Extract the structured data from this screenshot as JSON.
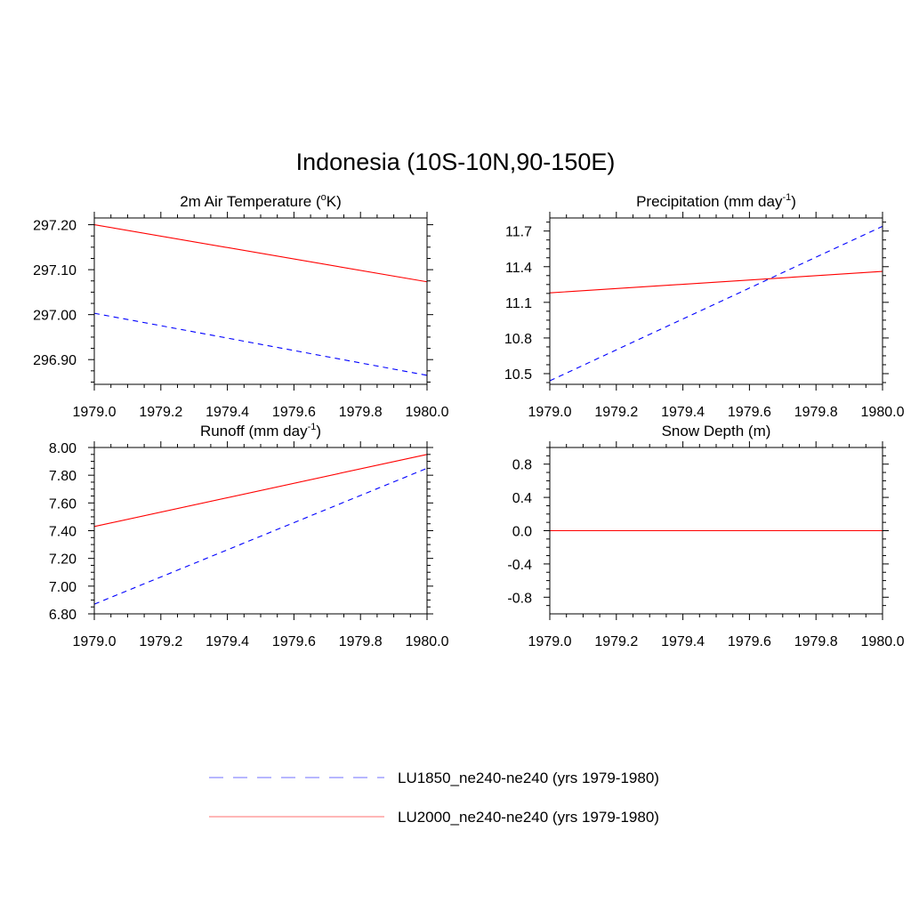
{
  "page": {
    "title": "Indonesia (10S-10N,90-150E)"
  },
  "legend": {
    "items": [
      {
        "label": "LU1850_ne240-ne240 (yrs 1979-1980)",
        "color": "#0000ff",
        "dash": "dashed"
      },
      {
        "label": "LU2000_ne240-ne240 (yrs 1979-1980)",
        "color": "#ff0000",
        "dash": "solid"
      }
    ]
  },
  "chart_data": [
    {
      "type": "line",
      "title": "2m Air Temperature (°K)",
      "title_parts": {
        "pre": "2m Air Temperature (",
        "sup": "o",
        "post": "K)"
      },
      "xlim": [
        1979.0,
        1980.0
      ],
      "x_ticks": [
        "1979.0",
        "1979.2",
        "1979.4",
        "1979.6",
        "1979.8",
        "1980.0"
      ],
      "ylim": [
        296.845,
        297.215
      ],
      "y_ticks": [
        296.9,
        297.0,
        297.1,
        297.2
      ],
      "y_tick_labels": [
        "296.90",
        "297.00",
        "297.10",
        "297.20"
      ],
      "series": [
        {
          "name": "LU1850_ne240-ne240 (yrs 1979-1980)",
          "x": [
            1979.0,
            1980.0
          ],
          "y": [
            297.003,
            296.865
          ]
        },
        {
          "name": "LU2000_ne240-ne240 (yrs 1979-1980)",
          "x": [
            1979.0,
            1980.0
          ],
          "y": [
            297.2,
            297.073
          ]
        }
      ]
    },
    {
      "type": "line",
      "title": "Precipitation (mm day-1)",
      "title_parts": {
        "pre": "Precipitation (mm day",
        "sup": "-1",
        "post": ")"
      },
      "xlim": [
        1979.0,
        1980.0
      ],
      "x_ticks": [
        "1979.0",
        "1979.2",
        "1979.4",
        "1979.6",
        "1979.8",
        "1980.0"
      ],
      "ylim": [
        10.41,
        11.81
      ],
      "y_ticks": [
        10.5,
        10.8,
        11.1,
        11.4,
        11.7
      ],
      "y_tick_labels": [
        "10.5",
        "10.8",
        "11.1",
        "11.4",
        "11.7"
      ],
      "series": [
        {
          "name": "LU1850_ne240-ne240 (yrs 1979-1980)",
          "x": [
            1979.0,
            1980.0
          ],
          "y": [
            10.44,
            11.74
          ]
        },
        {
          "name": "LU2000_ne240-ne240 (yrs 1979-1980)",
          "x": [
            1979.0,
            1980.0
          ],
          "y": [
            11.18,
            11.36
          ]
        }
      ]
    },
    {
      "type": "line",
      "title": "Runoff (mm day-1)",
      "title_parts": {
        "pre": "Runoff (mm day",
        "sup": "-1",
        "post": ")"
      },
      "xlim": [
        1979.0,
        1980.0
      ],
      "x_ticks": [
        "1979.0",
        "1979.2",
        "1979.4",
        "1979.6",
        "1979.8",
        "1980.0"
      ],
      "ylim": [
        6.8,
        8.0
      ],
      "y_ticks": [
        6.8,
        7.0,
        7.2,
        7.4,
        7.6,
        7.8,
        8.0
      ],
      "y_tick_labels": [
        "6.80",
        "7.00",
        "7.20",
        "7.40",
        "7.60",
        "7.80",
        "8.00"
      ],
      "series": [
        {
          "name": "LU1850_ne240-ne240 (yrs 1979-1980)",
          "x": [
            1979.0,
            1980.0
          ],
          "y": [
            6.87,
            7.85
          ]
        },
        {
          "name": "LU2000_ne240-ne240 (yrs 1979-1980)",
          "x": [
            1979.0,
            1980.0
          ],
          "y": [
            7.43,
            7.95
          ]
        }
      ]
    },
    {
      "type": "line",
      "title": "Snow Depth (m)",
      "title_parts": {
        "pre": "Snow Depth (m)",
        "sup": "",
        "post": ""
      },
      "xlim": [
        1979.0,
        1980.0
      ],
      "x_ticks": [
        "1979.0",
        "1979.2",
        "1979.4",
        "1979.6",
        "1979.8",
        "1980.0"
      ],
      "ylim": [
        -1.0,
        1.0
      ],
      "y_ticks": [
        -0.8,
        -0.4,
        0.0,
        0.4,
        0.8
      ],
      "y_tick_labels": [
        "-0.8",
        "-0.4",
        "0.0",
        "0.4",
        "0.8"
      ],
      "series": [
        {
          "name": "LU1850_ne240-ne240 (yrs 1979-1980)",
          "x": [
            1979.0,
            1980.0
          ],
          "y": [
            0.0,
            0.0
          ]
        },
        {
          "name": "LU2000_ne240-ne240 (yrs 1979-1980)",
          "x": [
            1979.0,
            1980.0
          ],
          "y": [
            0.0,
            0.0
          ]
        }
      ]
    }
  ]
}
